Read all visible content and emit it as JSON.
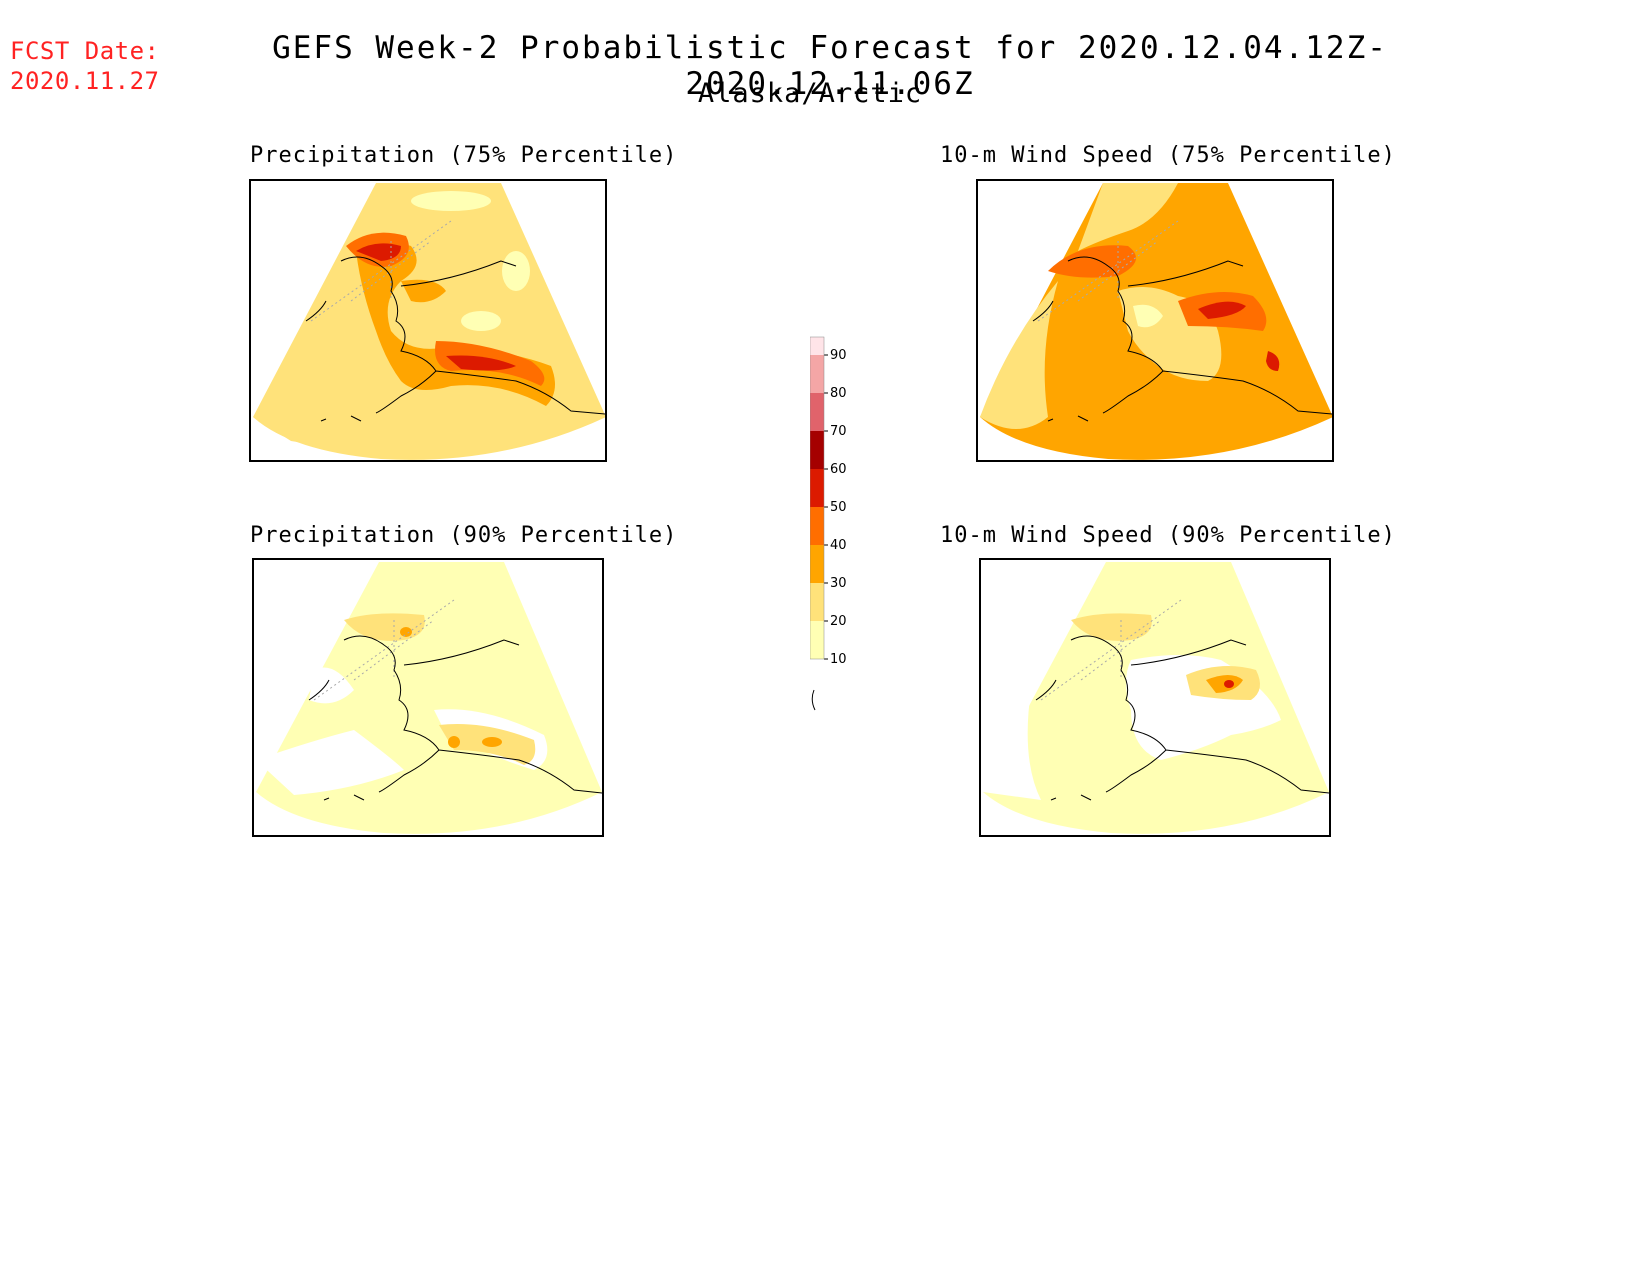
{
  "header": {
    "fcst_label": "FCST Date:",
    "fcst_date": "2020.11.27",
    "title": "GEFS Week-2 Probabilistic Forecast for 2020.12.04.12Z-2020.12.11.06Z",
    "subtitle": "Alaska/Arctic"
  },
  "panels": [
    {
      "id": "precip75",
      "title": "Precipitation (75% Percentile)"
    },
    {
      "id": "wind75",
      "title": "10-m Wind Speed (75% Percentile)"
    },
    {
      "id": "precip90",
      "title": "Precipitation (90% Percentile)"
    },
    {
      "id": "wind90",
      "title": "10-m Wind Speed (90% Percentile)"
    }
  ],
  "colorbar": {
    "ticks": [
      "90",
      "80",
      "70",
      "60",
      "50",
      "40",
      "30",
      "20",
      "10"
    ],
    "colors": {
      "10": "#ffffb4",
      "20": "#ffe27a",
      "30": "#ffa500",
      "40": "#ff6e00",
      "50": "#dc1a00",
      "60": "#a50000",
      "70": "#e0636b",
      "80": "#f4a6a6",
      "90": "#ffe4e8"
    }
  }
}
